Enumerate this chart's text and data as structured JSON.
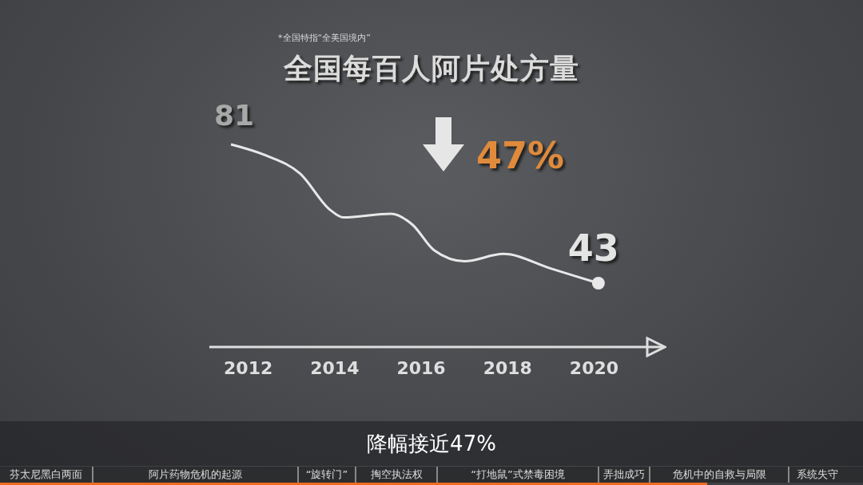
{
  "chart_data": {
    "type": "line",
    "title": "全国每百人阿片处方量",
    "x": [
      2011.6,
      2012.4,
      2013.2,
      2013.9,
      2014.2,
      2015.3,
      2015.8,
      2016.3,
      2017.0,
      2017.9,
      2019.0,
      2020.1
    ],
    "series": [
      {
        "color": "#e8e8e8",
        "values": [
          81,
          78,
          73,
          63,
          61,
          62,
          59,
          52,
          49,
          51,
          47,
          43
        ],
        "value_labels": [
          "81",
          null,
          null,
          null,
          null,
          null,
          null,
          null,
          null,
          null,
          null,
          "43"
        ]
      }
    ],
    "xlim": [
      2011.1,
      2021.6
    ],
    "xticks": [
      2012,
      2014,
      2016,
      2018,
      2020
    ],
    "tick_labels": "x",
    "annotations": [
      "*全国特指“全美国境内”",
      "47%",
      "降幅接近47%",
      "芬太尼黑白两面",
      "阿片药物危机的起源",
      "“旋转门”",
      "掏空执法权",
      "“打地鼠”式禁毒困境",
      "弄拙成巧",
      "危机中的自救与局限",
      "系统失守"
    ]
  }
}
